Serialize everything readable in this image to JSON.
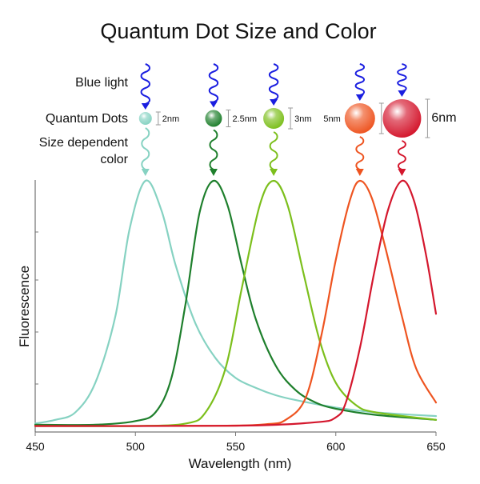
{
  "chart_data": {
    "type": "line",
    "title": "Quantum Dot Size and Color",
    "xlabel": "Wavelength (nm)",
    "ylabel": "Fluorescence",
    "xlim": [
      450,
      650
    ],
    "ylim": [
      0,
      1
    ],
    "x_ticks": [
      "450",
      "500",
      "550",
      "600",
      "650"
    ],
    "grid": false,
    "series": [
      {
        "color": "#86d2c2",
        "peak_x": 505,
        "size_label": "2nm",
        "points": [
          [
            450,
            0.015
          ],
          [
            460,
            0.03
          ],
          [
            470,
            0.06
          ],
          [
            480,
            0.18
          ],
          [
            490,
            0.45
          ],
          [
            497,
            0.8
          ],
          [
            505,
            1.0
          ],
          [
            513,
            0.88
          ],
          [
            520,
            0.66
          ],
          [
            530,
            0.42
          ],
          [
            540,
            0.28
          ],
          [
            550,
            0.2
          ],
          [
            560,
            0.16
          ],
          [
            570,
            0.13
          ],
          [
            580,
            0.11
          ],
          [
            600,
            0.08
          ],
          [
            620,
            0.06
          ],
          [
            650,
            0.045
          ]
        ]
      },
      {
        "color": "#1e7f2c",
        "peak_x": 539,
        "size_label": "2.5nm",
        "points": [
          [
            450,
            0.01
          ],
          [
            480,
            0.01
          ],
          [
            500,
            0.025
          ],
          [
            510,
            0.06
          ],
          [
            518,
            0.2
          ],
          [
            525,
            0.5
          ],
          [
            532,
            0.87
          ],
          [
            539,
            1.0
          ],
          [
            546,
            0.9
          ],
          [
            553,
            0.66
          ],
          [
            560,
            0.44
          ],
          [
            570,
            0.25
          ],
          [
            580,
            0.15
          ],
          [
            590,
            0.1
          ],
          [
            600,
            0.075
          ],
          [
            620,
            0.05
          ],
          [
            650,
            0.03
          ]
        ]
      },
      {
        "color": "#7cbf1c",
        "peak_x": 569,
        "size_label": "3nm",
        "points": [
          [
            450,
            0.005
          ],
          [
            500,
            0.005
          ],
          [
            525,
            0.015
          ],
          [
            535,
            0.06
          ],
          [
            545,
            0.24
          ],
          [
            553,
            0.56
          ],
          [
            562,
            0.9
          ],
          [
            569,
            1.0
          ],
          [
            576,
            0.9
          ],
          [
            584,
            0.62
          ],
          [
            592,
            0.35
          ],
          [
            600,
            0.18
          ],
          [
            610,
            0.09
          ],
          [
            620,
            0.06
          ],
          [
            650,
            0.03
          ]
        ]
      },
      {
        "color": "#ee5420",
        "peak_x": 612,
        "size_label": "5nm",
        "points": [
          [
            450,
            0.005
          ],
          [
            540,
            0.006
          ],
          [
            565,
            0.012
          ],
          [
            575,
            0.03
          ],
          [
            585,
            0.12
          ],
          [
            593,
            0.38
          ],
          [
            600,
            0.68
          ],
          [
            607,
            0.92
          ],
          [
            612,
            1.0
          ],
          [
            618,
            0.93
          ],
          [
            625,
            0.72
          ],
          [
            633,
            0.45
          ],
          [
            640,
            0.24
          ],
          [
            650,
            0.1
          ]
        ]
      },
      {
        "color": "#d4172d",
        "peak_x": 633,
        "size_label": "6nm",
        "points": [
          [
            450,
            0.005
          ],
          [
            550,
            0.006
          ],
          [
            590,
            0.02
          ],
          [
            600,
            0.04
          ],
          [
            605,
            0.1
          ],
          [
            612,
            0.32
          ],
          [
            619,
            0.62
          ],
          [
            626,
            0.88
          ],
          [
            633,
            1.0
          ],
          [
            639,
            0.92
          ],
          [
            645,
            0.7
          ],
          [
            650,
            0.46
          ]
        ]
      }
    ]
  },
  "annotations": {
    "blue_light": "Blue light",
    "quantum_dots": "Quantum Dots",
    "size_dependent_line1": "Size dependent",
    "size_dependent_line2": "color"
  },
  "colors": {
    "blue_light": "#1a1ee0",
    "axis": "#444444"
  }
}
